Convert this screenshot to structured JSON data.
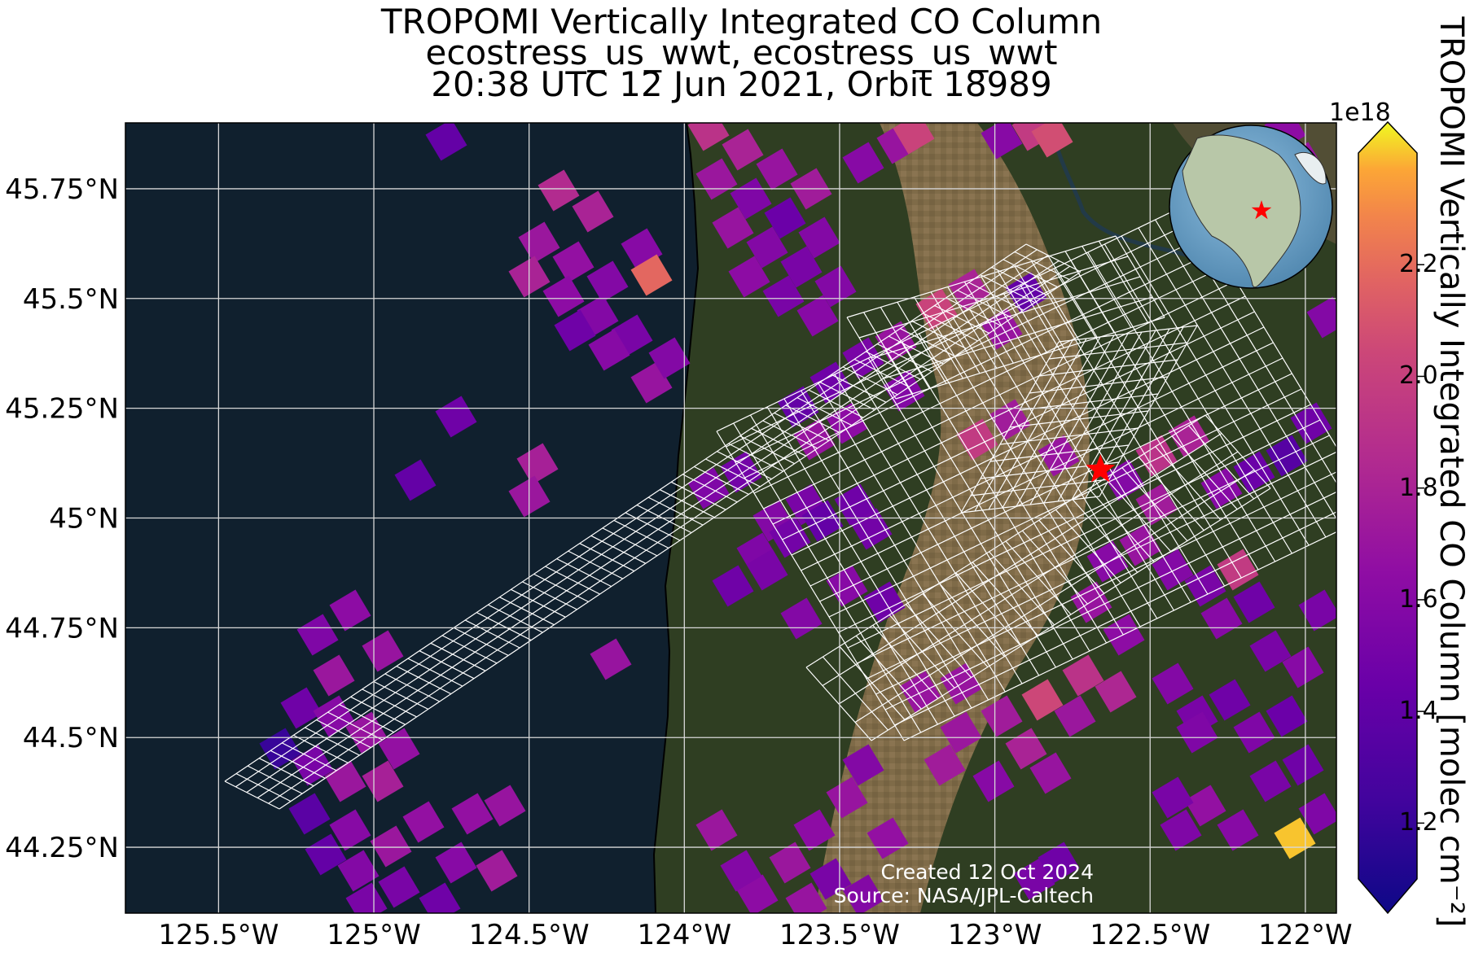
{
  "titles": [
    "TROPOMI Vertically Integrated CO Column",
    "ecostress_us_wwt, ecostress_us_wwt",
    "20:38 UTC 12 Jun 2021, Orbit 18989"
  ],
  "lat_ticks": [
    "45.75°N",
    "45.5°N",
    "45.25°N",
    "45°N",
    "44.75°N",
    "44.5°N",
    "44.25°N"
  ],
  "lon_ticks": [
    "125.5°W",
    "125°W",
    "124.5°W",
    "124°W",
    "123.5°W",
    "123°W",
    "122.5°W",
    "122°W"
  ],
  "colorbar": {
    "label": "TROPOMI Vertically Integrated CO Column [molec cm⁻²]",
    "exponent": "1e18",
    "ticks": [
      "1.2",
      "1.4",
      "1.6",
      "1.8",
      "2.0",
      "2.2"
    ],
    "colormap": "plasma",
    "range": [
      1.1,
      2.4
    ]
  },
  "credit": {
    "created": "Created 12 Oct 2024",
    "source": "Source: NASA/JPL-Caltech"
  },
  "map": {
    "extent_lon": [
      -125.8,
      -121.9
    ],
    "extent_lat": [
      44.1,
      45.9
    ],
    "site_marker": {
      "lon": -122.66,
      "lat": 45.11,
      "color": "#ff0000",
      "icon": "star"
    },
    "ocean_color": "#10202e",
    "land_color": "#2f3e22",
    "valley_color": "#8a6e4e",
    "grid_color": "#d8d8d8",
    "footprint_outline_color": "#ffffff",
    "inset_globe": {
      "center_lon": -100,
      "center_lat": 40,
      "ocean_color": "#6fa3c8",
      "land_color": "#b8c7a8",
      "marker_color": "#ff0000"
    }
  }
}
